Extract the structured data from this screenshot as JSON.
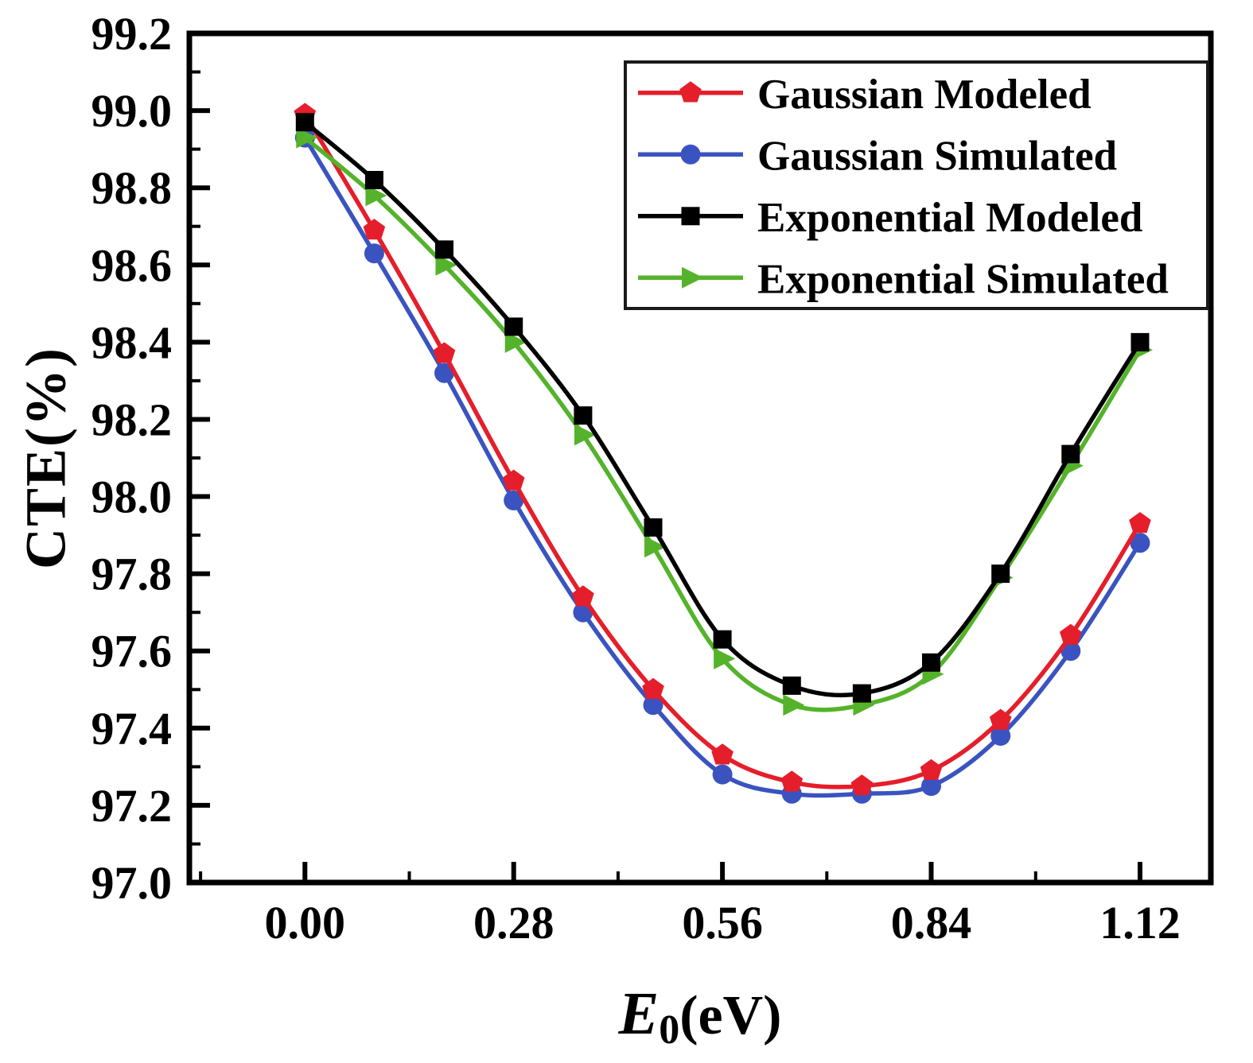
{
  "chart_data": {
    "type": "line",
    "title": "",
    "xlabel": "E0(eV)",
    "xlabel_var": "E",
    "xlabel_sub": "0",
    "xlabel_unit": "(eV)",
    "ylabel": "CTE(%)",
    "x_tick_labels": [
      "0.00",
      "0.28",
      "0.56",
      "0.84",
      "1.12"
    ],
    "x_ticks": [
      0.0,
      0.28,
      0.56,
      0.84,
      1.12
    ],
    "y_tick_labels": [
      "97.0",
      "97.2",
      "97.4",
      "97.6",
      "97.8",
      "98.0",
      "98.2",
      "98.4",
      "98.6",
      "98.8",
      "99.0",
      "99.2"
    ],
    "x_range": [
      -0.155,
      1.215
    ],
    "y_range": [
      97.0,
      99.2
    ],
    "grid": false,
    "legend_position": "top-right",
    "x": [
      0.0,
      0.093,
      0.187,
      0.28,
      0.373,
      0.467,
      0.56,
      0.653,
      0.747,
      0.84,
      0.933,
      1.027,
      1.12
    ],
    "series": [
      {
        "name": "Gaussian Modeled",
        "color": "#e51e2b",
        "marker": "pentagon",
        "values": [
          98.99,
          98.69,
          98.37,
          98.04,
          97.74,
          97.5,
          97.33,
          97.26,
          97.25,
          97.29,
          97.42,
          97.64,
          97.93
        ]
      },
      {
        "name": "Gaussian Simulated",
        "color": "#3a53c0",
        "marker": "circle",
        "values": [
          98.93,
          98.63,
          98.32,
          97.99,
          97.7,
          97.46,
          97.28,
          97.23,
          97.23,
          97.25,
          97.38,
          97.6,
          97.88
        ]
      },
      {
        "name": "Exponential Modeled",
        "color": "#000000",
        "marker": "square",
        "values": [
          98.97,
          98.82,
          98.64,
          98.44,
          98.21,
          97.92,
          97.63,
          97.51,
          97.49,
          97.57,
          97.8,
          98.11,
          98.4
        ]
      },
      {
        "name": "Exponential Simulated",
        "color": "#54b32a",
        "marker": "triangle-right",
        "values": [
          98.93,
          98.78,
          98.6,
          98.4,
          98.16,
          97.87,
          97.58,
          97.46,
          97.46,
          97.54,
          97.79,
          98.08,
          98.38
        ]
      }
    ]
  }
}
